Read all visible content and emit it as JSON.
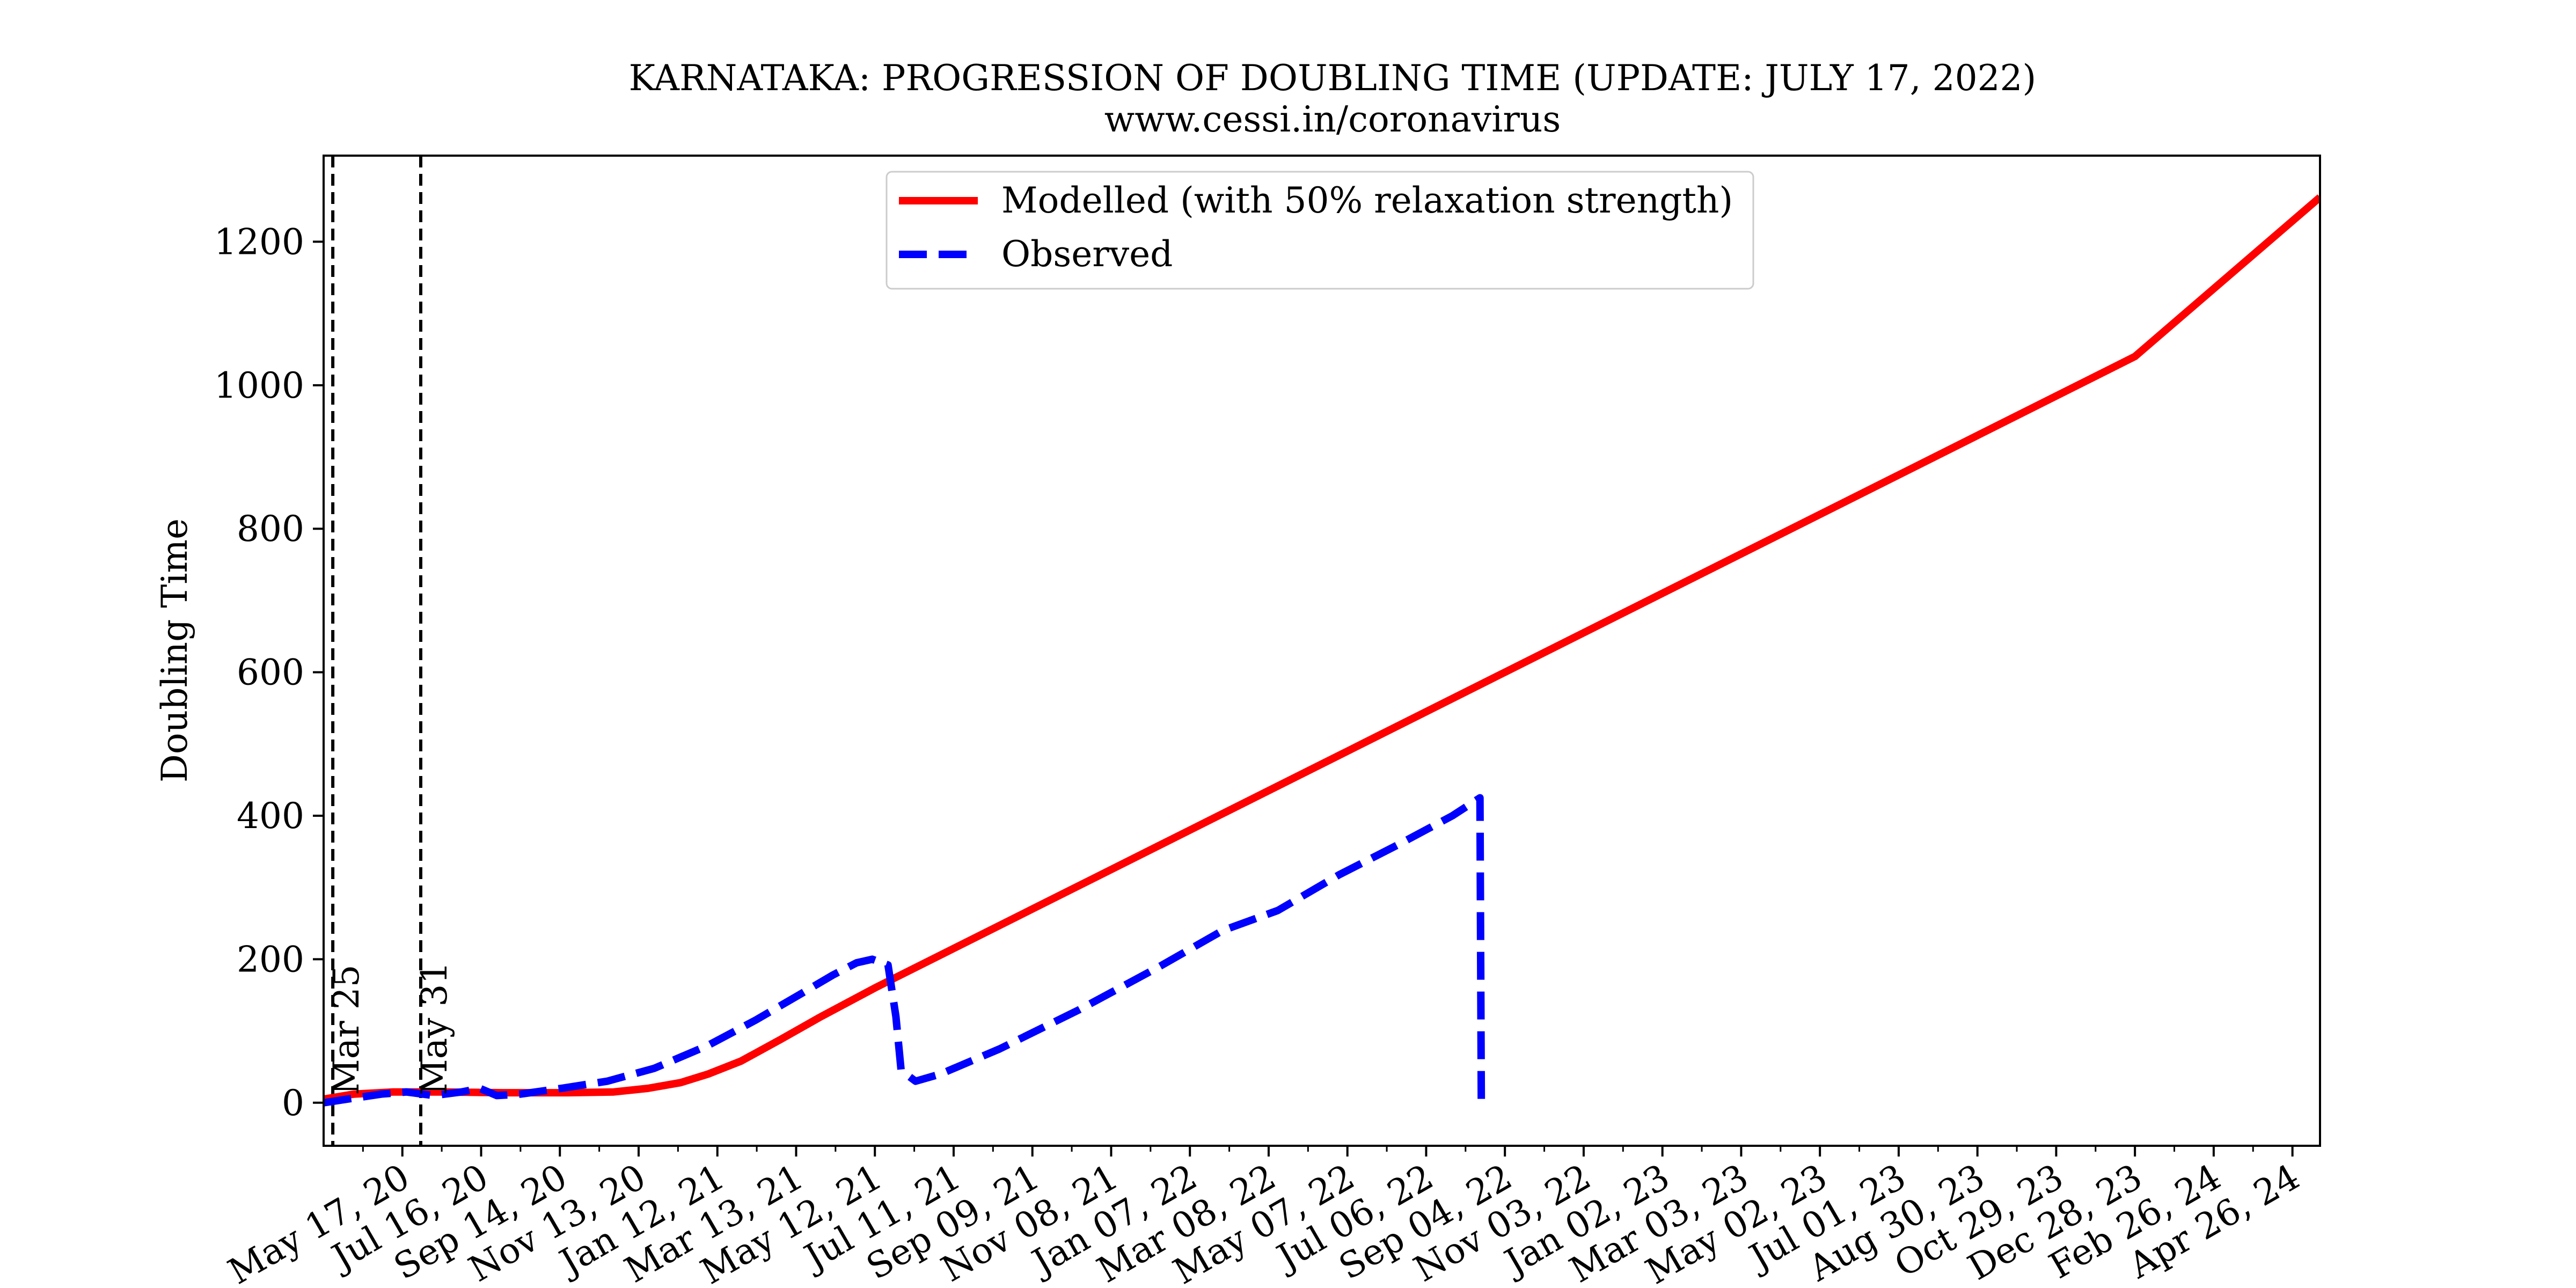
{
  "chart_data": {
    "type": "line",
    "title": "KARNATAKA: PROGRESSION OF DOUBLING TIME (UPDATE: JULY 17, 2022)",
    "subtitle": "www.cessi.in/coronavirus",
    "xlabel": "",
    "ylabel": "Doubling Time",
    "xlim": [
      "2020-03-18",
      "2024-05-17"
    ],
    "ylim": [
      -60,
      1320
    ],
    "yticks": [
      0,
      200,
      400,
      600,
      800,
      1000,
      1200
    ],
    "xticks": [
      {
        "date": "2020-05-17",
        "label": "May 17, 20"
      },
      {
        "date": "2020-07-16",
        "label": "Jul 16, 20"
      },
      {
        "date": "2020-09-14",
        "label": "Sep 14, 20"
      },
      {
        "date": "2020-11-13",
        "label": "Nov 13, 20"
      },
      {
        "date": "2021-01-12",
        "label": "Jan 12, 21"
      },
      {
        "date": "2021-03-13",
        "label": "Mar 13, 21"
      },
      {
        "date": "2021-05-12",
        "label": "May 12, 21"
      },
      {
        "date": "2021-07-11",
        "label": "Jul 11, 21"
      },
      {
        "date": "2021-09-09",
        "label": "Sep 09, 21"
      },
      {
        "date": "2021-11-08",
        "label": "Nov 08, 21"
      },
      {
        "date": "2022-01-07",
        "label": "Jan 07, 22"
      },
      {
        "date": "2022-03-08",
        "label": "Mar 08, 22"
      },
      {
        "date": "2022-05-07",
        "label": "May 07, 22"
      },
      {
        "date": "2022-07-06",
        "label": "Jul 06, 22"
      },
      {
        "date": "2022-09-04",
        "label": "Sep 04, 22"
      },
      {
        "date": "2022-11-03",
        "label": "Nov 03, 22"
      },
      {
        "date": "2023-01-02",
        "label": "Jan 02, 23"
      },
      {
        "date": "2023-03-03",
        "label": "Mar 03, 23"
      },
      {
        "date": "2023-05-02",
        "label": "May 02, 23"
      },
      {
        "date": "2023-07-01",
        "label": "Jul 01, 23"
      },
      {
        "date": "2023-08-30",
        "label": "Aug 30, 23"
      },
      {
        "date": "2023-10-29",
        "label": "Oct 29, 23"
      },
      {
        "date": "2023-12-28",
        "label": "Dec 28, 23"
      },
      {
        "date": "2024-02-26",
        "label": "Feb 26, 24"
      },
      {
        "date": "2024-04-26",
        "label": "Apr 26, 24"
      }
    ],
    "vlines": [
      {
        "date": "2020-03-25",
        "label": "Mar 25"
      },
      {
        "date": "2020-05-31",
        "label": "May 31"
      }
    ],
    "legend_position": "top-center",
    "grid": false,
    "series": [
      {
        "name": "Modelled (with 50% relaxation strength)",
        "color": "#ff0000",
        "style": "solid",
        "points": [
          {
            "x": "2020-03-18",
            "y": 5
          },
          {
            "x": "2020-04-10",
            "y": 12
          },
          {
            "x": "2020-05-10",
            "y": 15
          },
          {
            "x": "2020-06-15",
            "y": 15
          },
          {
            "x": "2020-08-01",
            "y": 14
          },
          {
            "x": "2020-09-20",
            "y": 14
          },
          {
            "x": "2020-10-25",
            "y": 15
          },
          {
            "x": "2020-11-20",
            "y": 20
          },
          {
            "x": "2020-12-15",
            "y": 28
          },
          {
            "x": "2021-01-05",
            "y": 40
          },
          {
            "x": "2021-01-30",
            "y": 58
          },
          {
            "x": "2021-03-01",
            "y": 88
          },
          {
            "x": "2021-04-01",
            "y": 120
          },
          {
            "x": "2021-05-12",
            "y": 160
          },
          {
            "x": "2021-09-09",
            "y": 270
          },
          {
            "x": "2022-01-07",
            "y": 380
          },
          {
            "x": "2022-05-07",
            "y": 490
          },
          {
            "x": "2022-09-04",
            "y": 600
          },
          {
            "x": "2023-01-02",
            "y": 710
          },
          {
            "x": "2023-05-02",
            "y": 820
          },
          {
            "x": "2023-08-30",
            "y": 930
          },
          {
            "x": "2023-12-28",
            "y": 1040
          },
          {
            "x": "2024-05-17",
            "y": 1262
          }
        ]
      },
      {
        "name": "Observed",
        "color": "#0000ff",
        "style": "dashed",
        "points": [
          {
            "x": "2020-03-18",
            "y": 0
          },
          {
            "x": "2020-04-05",
            "y": 5
          },
          {
            "x": "2020-05-01",
            "y": 12
          },
          {
            "x": "2020-05-20",
            "y": 15
          },
          {
            "x": "2020-06-10",
            "y": 10
          },
          {
            "x": "2020-07-01",
            "y": 15
          },
          {
            "x": "2020-07-15",
            "y": 20
          },
          {
            "x": "2020-07-28",
            "y": 10
          },
          {
            "x": "2020-08-15",
            "y": 12
          },
          {
            "x": "2020-09-15",
            "y": 20
          },
          {
            "x": "2020-10-20",
            "y": 30
          },
          {
            "x": "2020-11-25",
            "y": 48
          },
          {
            "x": "2021-01-05",
            "y": 80
          },
          {
            "x": "2021-02-10",
            "y": 115
          },
          {
            "x": "2021-03-15",
            "y": 150
          },
          {
            "x": "2021-04-10",
            "y": 178
          },
          {
            "x": "2021-04-28",
            "y": 195
          },
          {
            "x": "2021-05-10",
            "y": 200
          },
          {
            "x": "2021-05-22",
            "y": 192
          },
          {
            "x": "2021-05-28",
            "y": 120
          },
          {
            "x": "2021-06-01",
            "y": 45
          },
          {
            "x": "2021-06-12",
            "y": 30
          },
          {
            "x": "2021-07-01",
            "y": 40
          },
          {
            "x": "2021-08-15",
            "y": 75
          },
          {
            "x": "2021-10-15",
            "y": 130
          },
          {
            "x": "2021-12-15",
            "y": 190
          },
          {
            "x": "2022-02-01",
            "y": 240
          },
          {
            "x": "2022-03-15",
            "y": 268
          },
          {
            "x": "2022-05-01",
            "y": 318
          },
          {
            "x": "2022-06-15",
            "y": 360
          },
          {
            "x": "2022-07-26",
            "y": 400
          },
          {
            "x": "2022-08-16",
            "y": 425
          },
          {
            "x": "2022-08-17",
            "y": 0
          }
        ]
      }
    ]
  }
}
